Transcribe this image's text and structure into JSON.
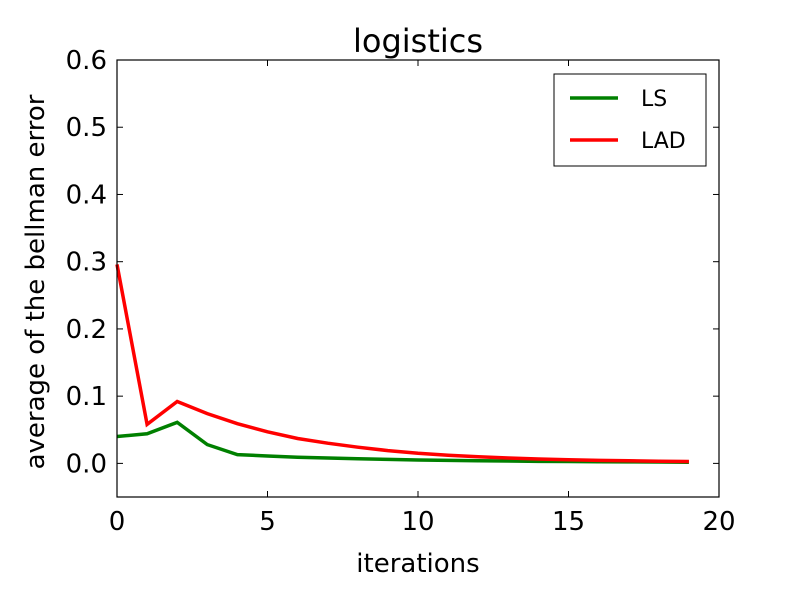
{
  "chart_data": {
    "type": "line",
    "title": "logistics",
    "xlabel": "iterations",
    "ylabel": "average of the bellman error",
    "xlim": [
      0,
      20
    ],
    "ylim": [
      -0.05,
      0.6
    ],
    "xticks": [
      0,
      5,
      10,
      15,
      20
    ],
    "xtick_labels": [
      "0",
      "5",
      "10",
      "15",
      "20"
    ],
    "yticks": [
      0.0,
      0.1,
      0.2,
      0.3,
      0.4,
      0.5,
      0.6
    ],
    "ytick_labels": [
      "0.0",
      "0.1",
      "0.2",
      "0.3",
      "0.4",
      "0.5",
      "0.6"
    ],
    "grid": false,
    "legend_position": "top-right",
    "x": [
      0,
      1,
      2,
      3,
      4,
      5,
      6,
      7,
      8,
      9,
      10,
      11,
      12,
      13,
      14,
      15,
      16,
      17,
      18,
      19
    ],
    "series": [
      {
        "name": "LS",
        "color": "#008000",
        "values": [
          0.04,
          0.044,
          0.061,
          0.028,
          0.013,
          0.011,
          0.009,
          0.008,
          0.007,
          0.006,
          0.005,
          0.0045,
          0.004,
          0.0035,
          0.003,
          0.0028,
          0.0025,
          0.0022,
          0.002,
          0.0018
        ]
      },
      {
        "name": "LAD",
        "color": "#ff0000",
        "values": [
          0.296,
          0.058,
          0.092,
          0.074,
          0.059,
          0.047,
          0.037,
          0.03,
          0.024,
          0.019,
          0.015,
          0.012,
          0.01,
          0.008,
          0.0065,
          0.0055,
          0.0045,
          0.0038,
          0.0032,
          0.0028
        ]
      }
    ]
  }
}
